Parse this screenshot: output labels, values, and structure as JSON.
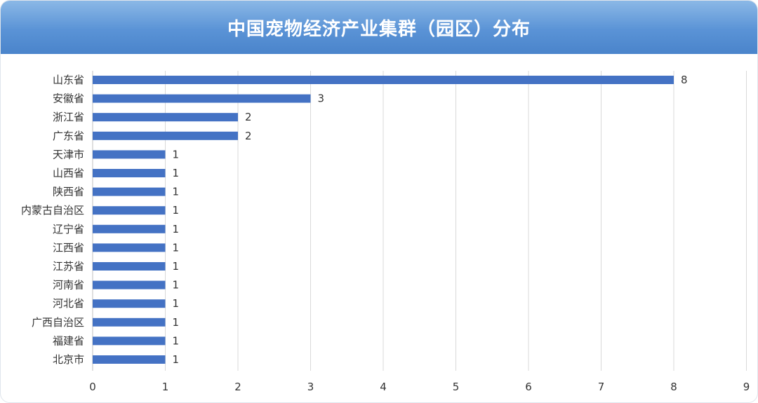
{
  "chart_data": {
    "type": "bar",
    "orientation": "horizontal",
    "title": "中国宠物经济产业集群（园区）分布",
    "categories": [
      "山东省",
      "安徽省",
      "浙江省",
      "广东省",
      "天津市",
      "山西省",
      "陕西省",
      "内蒙古自治区",
      "辽宁省",
      "江西省",
      "江苏省",
      "河南省",
      "河北省",
      "广西自治区",
      "福建省",
      "北京市"
    ],
    "values": [
      8,
      3,
      2,
      2,
      1,
      1,
      1,
      1,
      1,
      1,
      1,
      1,
      1,
      1,
      1,
      1
    ],
    "xlim": [
      0,
      9
    ],
    "xticks": [
      0,
      1,
      2,
      3,
      4,
      5,
      6,
      7,
      8,
      9
    ],
    "grid": true,
    "data_labels": true,
    "bar_color": "#4472c4",
    "header_color": "#5a93d6"
  }
}
